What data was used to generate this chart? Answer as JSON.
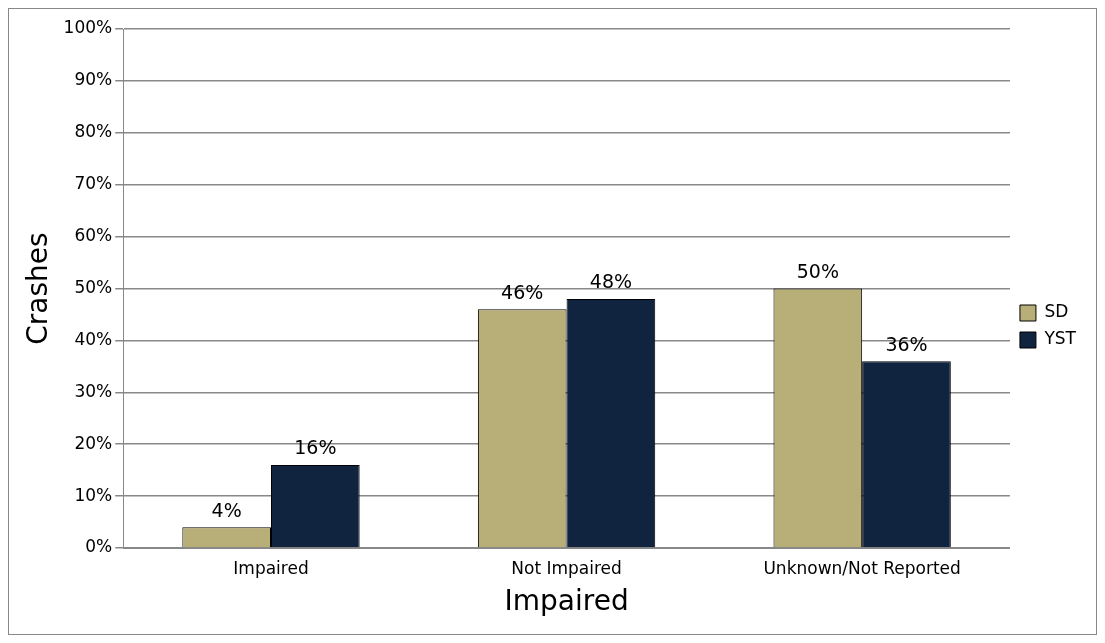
{
  "chart_data": {
    "type": "bar",
    "xlabel": "Impaired",
    "ylabel": "Crashes",
    "categories": [
      "Impaired",
      "Not Impaired",
      "Unknown/Not Reported"
    ],
    "series": [
      {
        "name": "SD",
        "color": "#b8ae78",
        "values": [
          4,
          46,
          50
        ],
        "value_labels": [
          "4%",
          "46%",
          "50%"
        ]
      },
      {
        "name": "YST",
        "color": "#10243f",
        "values": [
          16,
          48,
          36
        ],
        "value_labels": [
          "16%",
          "48%",
          "36%"
        ]
      }
    ],
    "ylim": [
      0,
      100
    ],
    "yticks": [
      {
        "value": 0,
        "label": "0%"
      },
      {
        "value": 10,
        "label": "10%"
      },
      {
        "value": 20,
        "label": "20%"
      },
      {
        "value": 30,
        "label": "30%"
      },
      {
        "value": 40,
        "label": "40%"
      },
      {
        "value": 50,
        "label": "50%"
      },
      {
        "value": 60,
        "label": "60%"
      },
      {
        "value": 70,
        "label": "70%"
      },
      {
        "value": 80,
        "label": "80%"
      },
      {
        "value": 90,
        "label": "90%"
      },
      {
        "value": 100,
        "label": "100%"
      }
    ],
    "grid": "y",
    "legend": "right"
  }
}
